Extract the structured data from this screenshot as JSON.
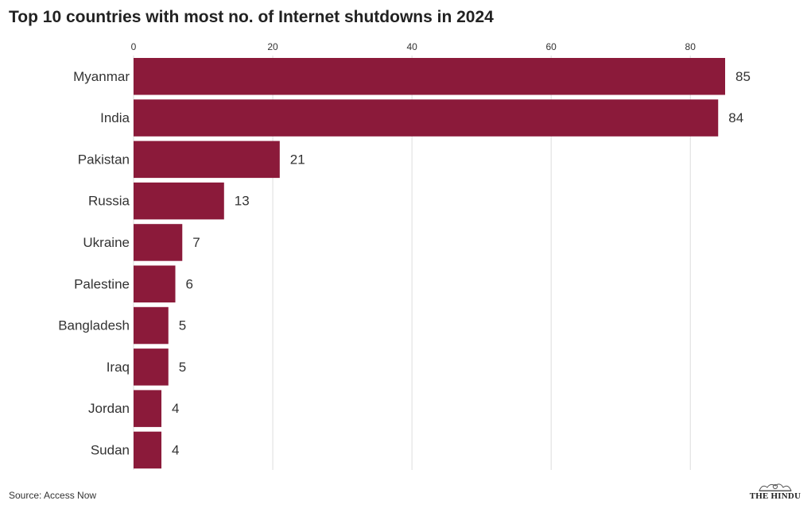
{
  "chart_data": {
    "type": "bar",
    "orientation": "horizontal",
    "title": "Top 10 countries with most no. of Internet shutdowns in 2024",
    "categories": [
      "Myanmar",
      "India",
      "Pakistan",
      "Russia",
      "Ukraine",
      "Palestine",
      "Bangladesh",
      "Iraq",
      "Jordan",
      "Sudan"
    ],
    "values": [
      85,
      84,
      21,
      13,
      7,
      6,
      5,
      5,
      4,
      4
    ],
    "xlim": [
      0,
      85
    ],
    "xticks": [
      0,
      20,
      40,
      60,
      80
    ],
    "axis_position": "top",
    "grid": true,
    "bar_color": "#8b1a3a",
    "data_labels": true
  },
  "footer": {
    "source": "Source: Access Now",
    "logo_text": "THE HINDU"
  },
  "colors": {
    "bar": "#8b1a3a",
    "grid": "#dddddd",
    "text": "#333333"
  }
}
